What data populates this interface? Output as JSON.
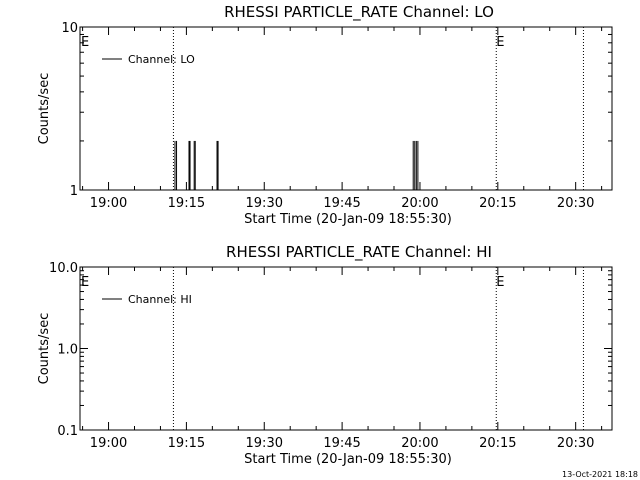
{
  "chart_data": [
    {
      "type": "line",
      "title": "RHESSI PARTICLE_RATE Channel: LO",
      "xlabel": "Start Time (20-Jan-09 18:55:30)",
      "ylabel": "Counts/sec",
      "yscale": "log",
      "ylim": [
        1,
        10
      ],
      "y_ticks": [
        "1",
        "10"
      ],
      "x_tick_labels": [
        "19:00",
        "19:15",
        "19:30",
        "19:45",
        "20:00",
        "20:15",
        "20:30"
      ],
      "x_tick_minutes": [
        0,
        15,
        30,
        45,
        60,
        75,
        90
      ],
      "xlim_minutes": [
        -5.5,
        97
      ],
      "legend": {
        "label": "Channel: LO",
        "placement": "top-left"
      },
      "event_lines": [
        {
          "minute": 12.5,
          "label": ""
        },
        {
          "minute": 74.7,
          "label": "E"
        },
        {
          "minute": 91.5,
          "label": ""
        }
      ],
      "edge_label": "E",
      "spikes_minutes": [
        12.8,
        13.1,
        15.5,
        15.7,
        16.5,
        16.7,
        20.9,
        21.1,
        58.7,
        59.0,
        59.3,
        59.6
      ],
      "spike_value": 2,
      "series": [
        {
          "name": "Channel: LO",
          "color": "#000000"
        }
      ]
    },
    {
      "type": "line",
      "title": "RHESSI PARTICLE_RATE Channel: HI",
      "xlabel": "Start Time (20-Jan-09 18:55:30)",
      "ylabel": "Counts/sec",
      "yscale": "log",
      "ylim": [
        0.1,
        10
      ],
      "y_ticks": [
        "0.1",
        "1.0",
        "10.0"
      ],
      "x_tick_labels": [
        "19:00",
        "19:15",
        "19:30",
        "19:45",
        "20:00",
        "20:15",
        "20:30"
      ],
      "x_tick_minutes": [
        0,
        15,
        30,
        45,
        60,
        75,
        90
      ],
      "xlim_minutes": [
        -5.5,
        97
      ],
      "legend": {
        "label": "Channel: HI",
        "placement": "top-left"
      },
      "event_lines": [
        {
          "minute": 12.5,
          "label": ""
        },
        {
          "minute": 74.7,
          "label": "E"
        },
        {
          "minute": 91.5,
          "label": ""
        }
      ],
      "edge_label": "E",
      "spikes_minutes": [],
      "series": [
        {
          "name": "Channel: HI",
          "color": "#000000"
        }
      ]
    }
  ],
  "footer": {
    "timestamp": "13-Oct-2021 18:18"
  }
}
